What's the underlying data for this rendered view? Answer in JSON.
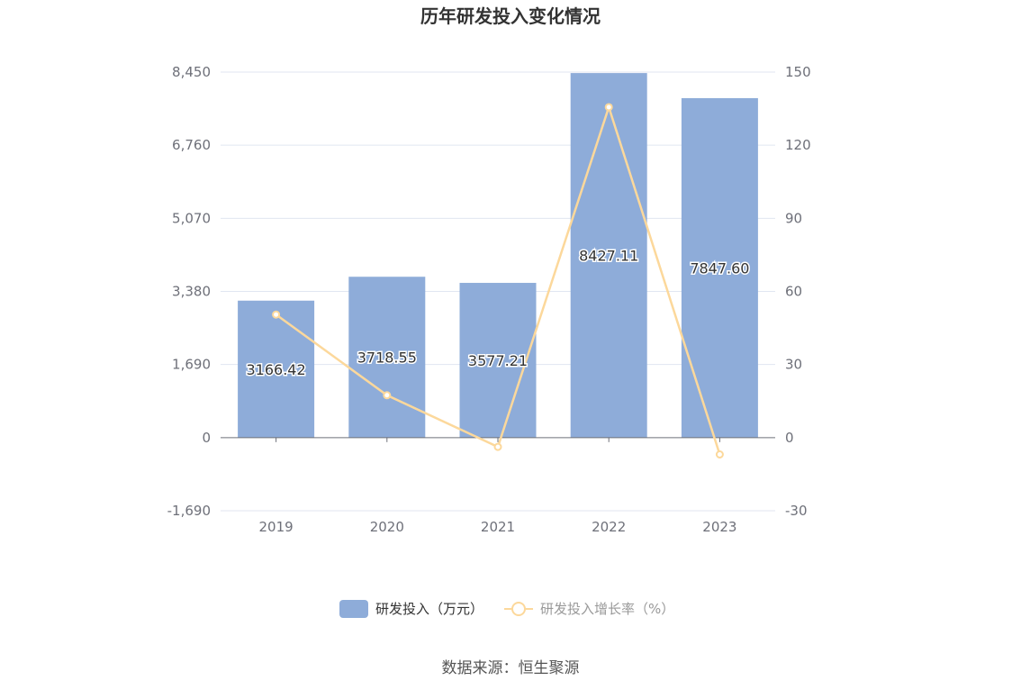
{
  "chart_data": {
    "type": "bar",
    "title": "历年研发投入变化情况",
    "categories": [
      "2019",
      "2020",
      "2021",
      "2022",
      "2023"
    ],
    "series": [
      {
        "name": "研发投入（万元）",
        "type": "bar",
        "axis": "left",
        "values": [
          3166.42,
          3718.55,
          3577.21,
          8427.11,
          7847.6
        ],
        "labels": [
          "3166.42",
          "3718.55",
          "3577.21",
          "8427.11",
          "7847.60"
        ],
        "color": "#8eacd9"
      },
      {
        "name": "研发投入增长率（%）",
        "type": "line",
        "axis": "right",
        "values": [
          50.5,
          17.4,
          -3.8,
          135.6,
          -6.9
        ],
        "color": "#fcd89b"
      }
    ],
    "y_left": {
      "min": -1690,
      "max": 8450,
      "ticks": [
        "8,450",
        "6,760",
        "5,070",
        "3,380",
        "1,690",
        "0",
        "-1,690"
      ],
      "tick_values": [
        8450,
        6760,
        5070,
        3380,
        1690,
        0,
        -1690
      ]
    },
    "y_right": {
      "min": -30,
      "max": 150,
      "ticks": [
        "150",
        "120",
        "90",
        "60",
        "30",
        "0",
        "-30"
      ],
      "tick_values": [
        150,
        120,
        90,
        60,
        30,
        0,
        -30
      ]
    },
    "grid": true,
    "legend_position": "bottom-center"
  },
  "source": "数据来源：恒生聚源"
}
